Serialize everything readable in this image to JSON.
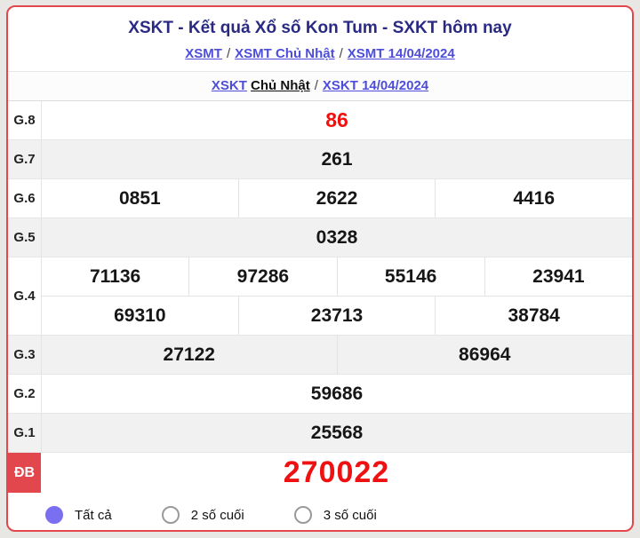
{
  "colors": {
    "card_border_red": "#e2474d",
    "value_red": "#ee1111",
    "link_blue": "#4d4ddb",
    "title_navy": "#2a2a84",
    "radio_selected_purple": "#7a6ff0",
    "row_alt_gray": "#f1f1f1"
  },
  "header": {
    "title": "XSKT - Kết quả Xổ số Kon Tum - SXKT hôm nay",
    "breadcrumb_top": {
      "separator": "/",
      "links": [
        "XSMT",
        "XSMT Chủ Nhật",
        "XSMT 14/04/2024"
      ]
    },
    "breadcrumb_sub": {
      "link1": "XSKT",
      "bold": "Chủ Nhật",
      "separator": "/",
      "link2": "XSKT 14/04/2024"
    }
  },
  "results": {
    "rows": [
      {
        "label": "G.8",
        "lines": [
          [
            "86"
          ]
        ]
      },
      {
        "label": "G.7",
        "lines": [
          [
            "261"
          ]
        ]
      },
      {
        "label": "G.6",
        "lines": [
          [
            "0851",
            "2622",
            "4416"
          ]
        ]
      },
      {
        "label": "G.5",
        "lines": [
          [
            "0328"
          ]
        ]
      },
      {
        "label": "G.4",
        "lines": [
          [
            "71136",
            "97286",
            "55146",
            "23941"
          ],
          [
            "69310",
            "23713",
            "38784"
          ]
        ]
      },
      {
        "label": "G.3",
        "lines": [
          [
            "27122",
            "86964"
          ]
        ]
      },
      {
        "label": "G.2",
        "lines": [
          [
            "59686"
          ]
        ]
      },
      {
        "label": "G.1",
        "lines": [
          [
            "25568"
          ]
        ]
      },
      {
        "label": "ĐB",
        "lines": [
          [
            "270022"
          ]
        ]
      }
    ]
  },
  "filter": {
    "options": [
      {
        "label": "Tất cả",
        "selected": true
      },
      {
        "label": "2 số cuối",
        "selected": false
      },
      {
        "label": "3 số cuối",
        "selected": false
      }
    ]
  }
}
